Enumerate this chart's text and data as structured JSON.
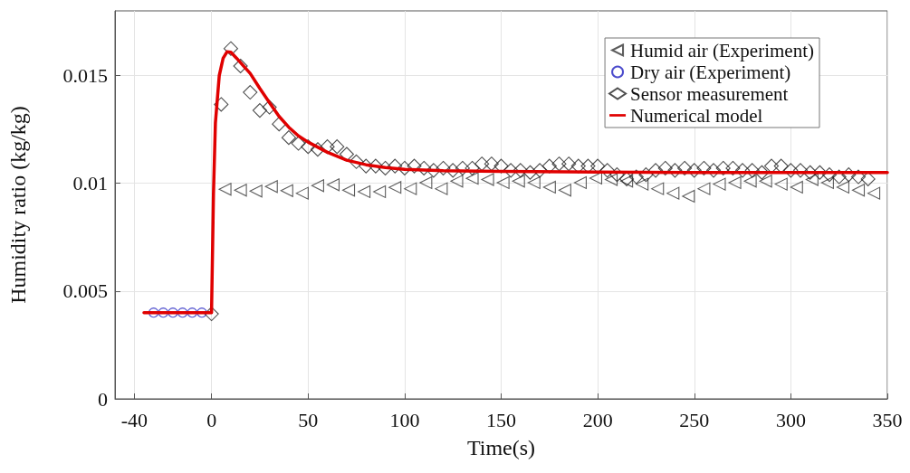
{
  "chart_data": {
    "type": "scatter",
    "xlabel": "Time(s)",
    "ylabel": "Humidity ratio (kg/kg)",
    "xlim": [
      -50,
      350
    ],
    "xticks": [
      -40,
      0,
      50,
      100,
      150,
      200,
      250,
      300,
      350
    ],
    "ylim": [
      0,
      0.018
    ],
    "yticks": [
      0,
      0.005,
      0.01,
      0.015
    ],
    "grid": true,
    "legend": "top right",
    "series": [
      {
        "name": "Humid air (Experiment)",
        "marker": "triangle",
        "color": "#333333",
        "x": [
          7,
          15,
          23,
          31,
          39,
          47,
          55,
          63,
          71,
          79,
          87,
          95,
          103,
          111,
          119,
          127,
          135,
          143,
          151,
          159,
          167,
          175,
          183,
          191,
          199,
          207,
          215,
          223,
          231,
          239,
          247,
          255,
          263,
          271,
          279,
          287,
          295,
          303,
          311,
          319,
          327,
          335,
          343
        ],
        "values": [
          0.00972,
          0.00968,
          0.00964,
          0.00985,
          0.00966,
          0.00954,
          0.00989,
          0.00993,
          0.00968,
          0.00961,
          0.00961,
          0.00981,
          0.00975,
          0.01003,
          0.00975,
          0.0101,
          0.01023,
          0.01017,
          0.01003,
          0.0101,
          0.01003,
          0.00982,
          0.00968,
          0.01003,
          0.01024,
          0.01017,
          0.0101,
          0.00996,
          0.00975,
          0.00954,
          0.0094,
          0.00975,
          0.00996,
          0.01003,
          0.0101,
          0.0101,
          0.00996,
          0.00982,
          0.01017,
          0.01003,
          0.00982,
          0.00968,
          0.00954
        ]
      },
      {
        "name": "Dry air (Experiment)",
        "marker": "circle",
        "color": "#1f1fbf",
        "x": [
          -30,
          -25,
          -20,
          -15,
          -10,
          -5
        ],
        "values": [
          0.004,
          0.004,
          0.004,
          0.004,
          0.004,
          0.004
        ]
      },
      {
        "name": "Sensor measurement",
        "marker": "diamond",
        "color": "#222222",
        "x": [
          0,
          5,
          10,
          15,
          20,
          25,
          30,
          35,
          40,
          45,
          50,
          55,
          60,
          65,
          70,
          75,
          80,
          85,
          90,
          95,
          100,
          105,
          110,
          115,
          120,
          125,
          130,
          135,
          140,
          145,
          150,
          155,
          160,
          165,
          170,
          175,
          180,
          185,
          190,
          195,
          200,
          205,
          210,
          215,
          220,
          225,
          230,
          235,
          240,
          245,
          250,
          255,
          260,
          265,
          270,
          275,
          280,
          285,
          290,
          295,
          300,
          305,
          310,
          315,
          320,
          325,
          330,
          335,
          340
        ],
        "values": [
          0.00394,
          0.01366,
          0.01625,
          0.01544,
          0.01422,
          0.01338,
          0.01353,
          0.01275,
          0.01212,
          0.01185,
          0.0117,
          0.01157,
          0.0117,
          0.0117,
          0.01135,
          0.011,
          0.0108,
          0.0108,
          0.0107,
          0.0108,
          0.0107,
          0.0108,
          0.0107,
          0.0106,
          0.0107,
          0.0106,
          0.0107,
          0.0107,
          0.0109,
          0.0109,
          0.0108,
          0.0106,
          0.0106,
          0.0105,
          0.0106,
          0.0108,
          0.0109,
          0.0109,
          0.0108,
          0.0108,
          0.0108,
          0.0106,
          0.0104,
          0.0102,
          0.0103,
          0.0104,
          0.0106,
          0.0107,
          0.0106,
          0.0107,
          0.0106,
          0.0107,
          0.0106,
          0.0107,
          0.0107,
          0.0106,
          0.0106,
          0.0105,
          0.0108,
          0.0108,
          0.0106,
          0.0106,
          0.0105,
          0.0105,
          0.0104,
          0.0103,
          0.0104,
          0.0103,
          0.0102
        ]
      },
      {
        "name": "Numerical model",
        "type": "line",
        "marker": "none",
        "color": "#e00000",
        "x": [
          -35,
          0,
          1,
          2,
          4,
          6,
          8,
          10,
          13,
          16,
          20,
          25,
          30,
          35,
          40,
          45,
          50,
          60,
          70,
          80,
          90,
          100,
          120,
          150,
          200,
          250,
          350
        ],
        "values": [
          0.004,
          0.004,
          0.0095,
          0.0128,
          0.015,
          0.0158,
          0.0161,
          0.01608,
          0.0158,
          0.0155,
          0.0151,
          0.0144,
          0.01374,
          0.0131,
          0.0126,
          0.0122,
          0.01191,
          0.01144,
          0.01107,
          0.01086,
          0.01073,
          0.01065,
          0.01058,
          0.01055,
          0.01052,
          0.0105,
          0.0105
        ]
      }
    ]
  }
}
